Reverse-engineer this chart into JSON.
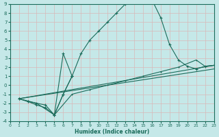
{
  "xlabel": "Humidex (Indice chaleur)",
  "background_color": "#c5e8e8",
  "grid_color": "#d4eeee",
  "line_color": "#1a6b5a",
  "xlim": [
    0,
    23
  ],
  "ylim": [
    -4,
    9
  ],
  "xticks": [
    0,
    1,
    2,
    3,
    4,
    5,
    6,
    7,
    8,
    9,
    10,
    11,
    12,
    13,
    14,
    15,
    16,
    17,
    18,
    19,
    20,
    21,
    22,
    23
  ],
  "yticks": [
    -4,
    -3,
    -2,
    -1,
    0,
    1,
    2,
    3,
    4,
    5,
    6,
    7,
    8,
    9
  ],
  "curve_main": {
    "x": [
      1,
      2,
      3,
      4,
      5,
      6,
      7,
      8,
      9,
      10,
      11,
      12,
      13,
      14,
      15,
      16,
      17,
      18,
      19,
      20,
      21,
      22,
      23
    ],
    "y": [
      -1.5,
      -1.8,
      -2.0,
      -2.2,
      -3.3,
      -1.0,
      1.0,
      3.5,
      5.0,
      6.0,
      7.0,
      8.0,
      9.0,
      9.2,
      9.4,
      9.5,
      7.5,
      4.5,
      2.8,
      2.1,
      1.8,
      2.1,
      2.2
    ]
  },
  "curve_spike": {
    "x": [
      5,
      6,
      7
    ],
    "y": [
      -3.3,
      3.5,
      1.0
    ]
  },
  "curve_mid": {
    "x": [
      1,
      3,
      5,
      7,
      9,
      11,
      13,
      15,
      17,
      19,
      21,
      22,
      23
    ],
    "y": [
      -1.5,
      -2.0,
      -3.3,
      -1.0,
      -0.5,
      0.0,
      0.5,
      1.0,
      1.5,
      2.0,
      2.8,
      2.1,
      2.2
    ]
  },
  "curve_low1": {
    "x": [
      1,
      23
    ],
    "y": [
      -1.5,
      2.2
    ]
  },
  "curve_low2": {
    "x": [
      1,
      23
    ],
    "y": [
      -1.5,
      1.8
    ]
  },
  "curve_zigzag": {
    "x": [
      1,
      2,
      3,
      4,
      5,
      6,
      7
    ],
    "y": [
      -1.5,
      -1.8,
      -2.2,
      -2.5,
      -3.3,
      -1.0,
      1.0
    ]
  }
}
